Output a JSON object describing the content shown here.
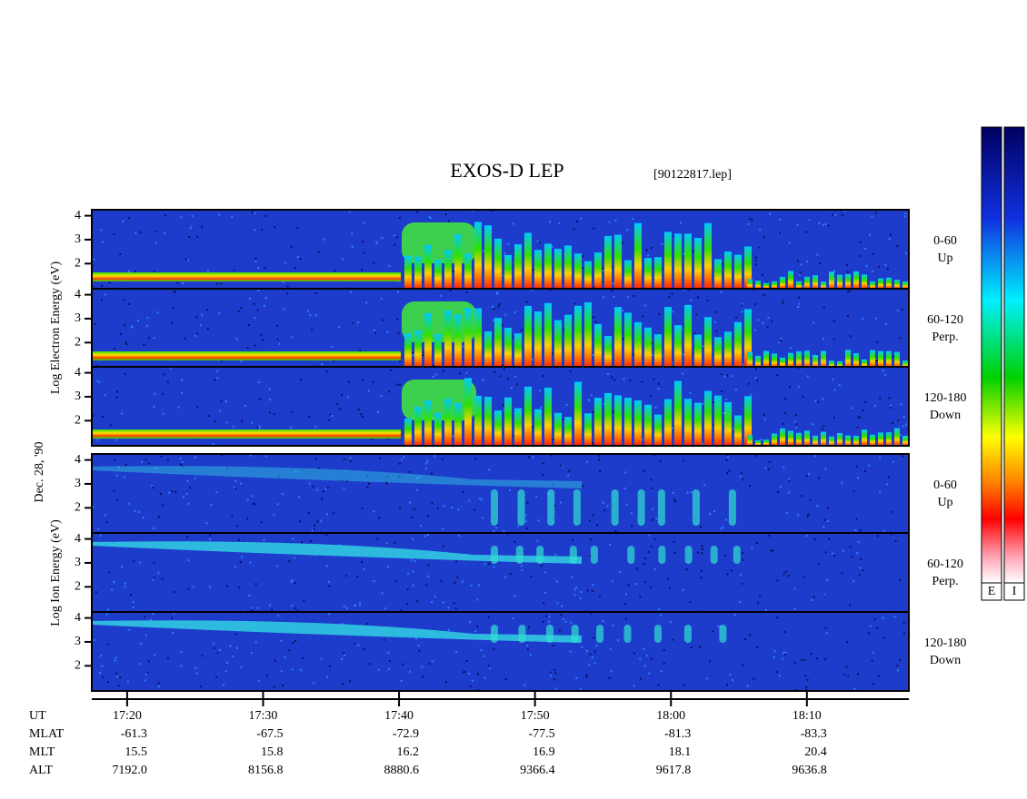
{
  "chart_data": {
    "type": "spectrogram",
    "title": "EXOS-D LEP",
    "file": "[90122817.lep]",
    "date": "Dec. 28, '90",
    "group_labels": [
      "Log Electron Energy (eV)",
      "Log Ion Energy (eV)"
    ],
    "panels": [
      {
        "group": 0,
        "angle": "0-60",
        "direction": "Up"
      },
      {
        "group": 0,
        "angle": "60-120",
        "direction": "Perp."
      },
      {
        "group": 0,
        "angle": "120-180",
        "direction": "Down"
      },
      {
        "group": 1,
        "angle": "0-60",
        "direction": "Up"
      },
      {
        "group": 1,
        "angle": "60-120",
        "direction": "Perp."
      },
      {
        "group": 1,
        "angle": "120-180",
        "direction": "Down"
      }
    ],
    "ylim": [
      0.95,
      4.25
    ],
    "yticks": [
      2,
      3,
      4
    ],
    "xlim": [
      1037.4,
      1097.5
    ],
    "x_label": "UT",
    "xticks": [
      {
        "value": 1040,
        "label": "17:20"
      },
      {
        "value": 1050,
        "label": "17:30"
      },
      {
        "value": 1060,
        "label": "17:40"
      },
      {
        "value": 1070,
        "label": "17:50"
      },
      {
        "value": 1080,
        "label": "18:00"
      },
      {
        "value": 1090,
        "label": "18:10"
      }
    ],
    "info_rows": [
      {
        "label": "MLAT",
        "values": [
          "-61.3",
          "-67.5",
          "-72.9",
          "-77.5",
          "-81.3",
          "-83.3"
        ]
      },
      {
        "label": "MLT",
        "values": [
          "15.5",
          "15.8",
          "16.2",
          "16.9",
          "18.1",
          "20.4"
        ]
      },
      {
        "label": "ALT",
        "values": [
          "7192.0",
          "8156.8",
          "8880.6",
          "9366.4",
          "9617.8",
          "9636.8"
        ]
      }
    ],
    "colorbar_labels": [
      "E",
      "I"
    ]
  }
}
